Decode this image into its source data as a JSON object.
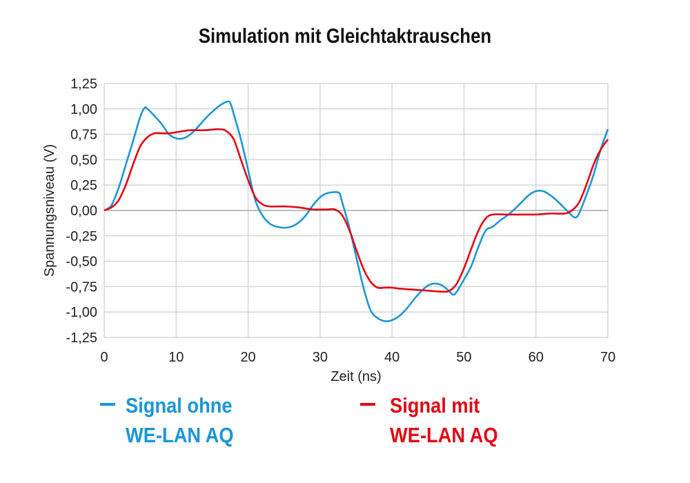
{
  "chart_data": {
    "type": "line",
    "title": "Simulation mit Gleichtaktrauschen",
    "xlabel": "Zeit (ns)",
    "ylabel": "Spannungsniveau (V)",
    "xlim": [
      0,
      70
    ],
    "ylim": [
      -1.25,
      1.25
    ],
    "xticks": [
      "0",
      "10",
      "20",
      "30",
      "40",
      "50",
      "60",
      "70"
    ],
    "yticks": [
      "1,25",
      "1,00",
      "0,75",
      "0,50",
      "0,25",
      "0,00",
      "-0,25",
      "-0,50",
      "-0,75",
      "-1,00",
      "-1,25"
    ],
    "grid": true,
    "legend_position": "bottom",
    "series": [
      {
        "name": "Signal ohne WE-LAN AQ",
        "name_lines": [
          "Signal ohne",
          "WE-LAN AQ"
        ],
        "color": "#1a96d8",
        "x": [
          0,
          1,
          2,
          3,
          4,
          5,
          5.6,
          6,
          7,
          8,
          9,
          10,
          11,
          12,
          13,
          14,
          15,
          16,
          17,
          17.5,
          18,
          19,
          20,
          21,
          22,
          23,
          24,
          25,
          26,
          27,
          28,
          29,
          30,
          31,
          32,
          32.7,
          33,
          34,
          35,
          36,
          37,
          38,
          39,
          40,
          41,
          42,
          43,
          44,
          45,
          46,
          47,
          48,
          48.5,
          49,
          50,
          51,
          52,
          53,
          54,
          55,
          56,
          57,
          58,
          59,
          60,
          61,
          62,
          63,
          64,
          65,
          65.5,
          66,
          67,
          68,
          69,
          70
        ],
        "y": [
          0,
          0.05,
          0.22,
          0.45,
          0.68,
          0.92,
          1.01,
          1.0,
          0.93,
          0.85,
          0.75,
          0.71,
          0.71,
          0.75,
          0.82,
          0.9,
          0.97,
          1.03,
          1.07,
          1.06,
          0.95,
          0.7,
          0.4,
          0.1,
          -0.05,
          -0.13,
          -0.16,
          -0.17,
          -0.16,
          -0.12,
          -0.05,
          0.05,
          0.13,
          0.17,
          0.18,
          0.17,
          0.1,
          -0.15,
          -0.45,
          -0.75,
          -0.98,
          -1.06,
          -1.09,
          -1.08,
          -1.04,
          -0.97,
          -0.88,
          -0.8,
          -0.74,
          -0.72,
          -0.74,
          -0.8,
          -0.83,
          -0.8,
          -0.68,
          -0.55,
          -0.36,
          -0.2,
          -0.16,
          -0.1,
          -0.05,
          0.01,
          0.08,
          0.15,
          0.19,
          0.19,
          0.15,
          0.09,
          0.02,
          -0.05,
          -0.07,
          -0.03,
          0.15,
          0.35,
          0.6,
          0.8
        ]
      },
      {
        "name": "Signal mit WE-LAN AQ",
        "name_lines": [
          "Signal mit",
          "WE-LAN AQ"
        ],
        "color": "#e30613",
        "x": [
          0,
          1,
          2,
          3,
          4,
          5,
          6,
          7,
          8,
          9,
          10,
          12,
          14,
          16,
          17,
          18,
          19,
          20,
          21,
          22,
          23,
          25,
          27,
          29,
          31,
          32,
          33,
          34,
          35,
          36,
          37,
          38,
          39,
          40,
          41,
          43,
          45,
          47,
          48,
          49,
          50,
          51,
          52,
          53,
          54,
          56,
          58,
          60,
          62,
          64,
          65,
          66,
          67,
          68,
          69,
          70
        ],
        "y": [
          0,
          0.03,
          0.1,
          0.25,
          0.45,
          0.63,
          0.72,
          0.76,
          0.76,
          0.76,
          0.77,
          0.79,
          0.79,
          0.8,
          0.78,
          0.7,
          0.5,
          0.3,
          0.13,
          0.06,
          0.04,
          0.04,
          0.03,
          0.01,
          0.01,
          0.01,
          -0.04,
          -0.18,
          -0.38,
          -0.57,
          -0.7,
          -0.76,
          -0.76,
          -0.76,
          -0.77,
          -0.78,
          -0.79,
          -0.8,
          -0.79,
          -0.72,
          -0.57,
          -0.38,
          -0.2,
          -0.08,
          -0.04,
          -0.04,
          -0.04,
          -0.04,
          -0.03,
          -0.03,
          0.0,
          0.08,
          0.25,
          0.45,
          0.6,
          0.7
        ]
      }
    ]
  }
}
